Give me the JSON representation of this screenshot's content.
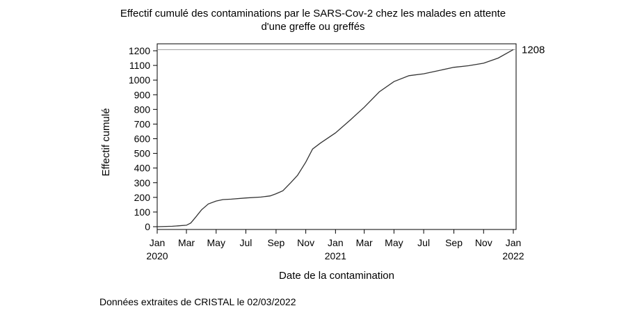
{
  "chart_data": {
    "type": "line",
    "title_lines": [
      "Effectif cumulé des contaminations par le SARS-Cov-2 chez les malades en attente",
      "d'une greffe ou greffés"
    ],
    "xlabel": "Date de la contamination",
    "ylabel": "Effectif cumulé",
    "x_ticks": [
      {
        "date": "2020-01-01",
        "label": "Jan",
        "year": "2020"
      },
      {
        "date": "2020-03-01",
        "label": "Mar",
        "year": ""
      },
      {
        "date": "2020-05-01",
        "label": "May",
        "year": ""
      },
      {
        "date": "2020-07-01",
        "label": "Jul",
        "year": ""
      },
      {
        "date": "2020-09-01",
        "label": "Sep",
        "year": ""
      },
      {
        "date": "2020-11-01",
        "label": "Nov",
        "year": ""
      },
      {
        "date": "2021-01-01",
        "label": "Jan",
        "year": "2021"
      },
      {
        "date": "2021-03-01",
        "label": "Mar",
        "year": ""
      },
      {
        "date": "2021-05-01",
        "label": "May",
        "year": ""
      },
      {
        "date": "2021-07-01",
        "label": "Jul",
        "year": ""
      },
      {
        "date": "2021-09-01",
        "label": "Sep",
        "year": ""
      },
      {
        "date": "2021-11-01",
        "label": "Nov",
        "year": ""
      },
      {
        "date": "2022-01-01",
        "label": "Jan",
        "year": "2022"
      }
    ],
    "xlim": [
      "2020-01-01",
      "2022-01-01"
    ],
    "y_ticks": [
      0,
      100,
      200,
      300,
      400,
      500,
      600,
      700,
      800,
      900,
      1000,
      1100,
      1200
    ],
    "ylim": [
      0,
      1200
    ],
    "reference_line": {
      "value": 1208,
      "label": "1208"
    },
    "grid": false,
    "series": [
      {
        "color": "#333333",
        "points": [
          {
            "x": "2020-01-01",
            "y": 0
          },
          {
            "x": "2020-02-01",
            "y": 3
          },
          {
            "x": "2020-03-01",
            "y": 10
          },
          {
            "x": "2020-03-10",
            "y": 25
          },
          {
            "x": "2020-03-20",
            "y": 65
          },
          {
            "x": "2020-04-01",
            "y": 115
          },
          {
            "x": "2020-04-15",
            "y": 155
          },
          {
            "x": "2020-05-01",
            "y": 175
          },
          {
            "x": "2020-05-15",
            "y": 185
          },
          {
            "x": "2020-06-01",
            "y": 188
          },
          {
            "x": "2020-07-01",
            "y": 196
          },
          {
            "x": "2020-08-01",
            "y": 202
          },
          {
            "x": "2020-08-20",
            "y": 210
          },
          {
            "x": "2020-09-01",
            "y": 225
          },
          {
            "x": "2020-09-15",
            "y": 245
          },
          {
            "x": "2020-10-01",
            "y": 300
          },
          {
            "x": "2020-10-15",
            "y": 350
          },
          {
            "x": "2020-11-01",
            "y": 440
          },
          {
            "x": "2020-11-15",
            "y": 530
          },
          {
            "x": "2020-12-01",
            "y": 570
          },
          {
            "x": "2021-01-01",
            "y": 640
          },
          {
            "x": "2021-02-01",
            "y": 730
          },
          {
            "x": "2021-03-01",
            "y": 815
          },
          {
            "x": "2021-04-01",
            "y": 920
          },
          {
            "x": "2021-05-01",
            "y": 990
          },
          {
            "x": "2021-06-01",
            "y": 1030
          },
          {
            "x": "2021-07-01",
            "y": 1043
          },
          {
            "x": "2021-08-01",
            "y": 1065
          },
          {
            "x": "2021-09-01",
            "y": 1087
          },
          {
            "x": "2021-10-01",
            "y": 1098
          },
          {
            "x": "2021-11-01",
            "y": 1115
          },
          {
            "x": "2021-12-01",
            "y": 1150
          },
          {
            "x": "2022-01-01",
            "y": 1208
          }
        ]
      }
    ]
  },
  "footer": {
    "note": "Données extraites de CRISTAL le 02/03/2022"
  }
}
